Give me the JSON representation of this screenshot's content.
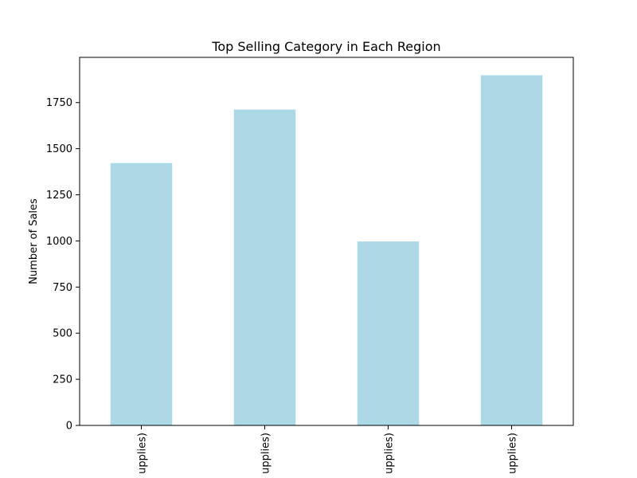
{
  "chart_data": {
    "type": "bar",
    "title": "Top Selling Category in Each Region",
    "xlabel": "",
    "ylabel": "Number of Sales",
    "categories": [
      "upplies)",
      "upplies)",
      "upplies)",
      "upplies)"
    ],
    "values": [
      1422,
      1712,
      997,
      1898
    ],
    "ylim": [
      0,
      1995
    ],
    "yticks": [
      0,
      250,
      500,
      750,
      1000,
      1250,
      1500,
      1750
    ],
    "grid": false,
    "legend": "none",
    "bar_color": "#add8e6",
    "axis_color": "#000000",
    "background": "#ffffff"
  }
}
